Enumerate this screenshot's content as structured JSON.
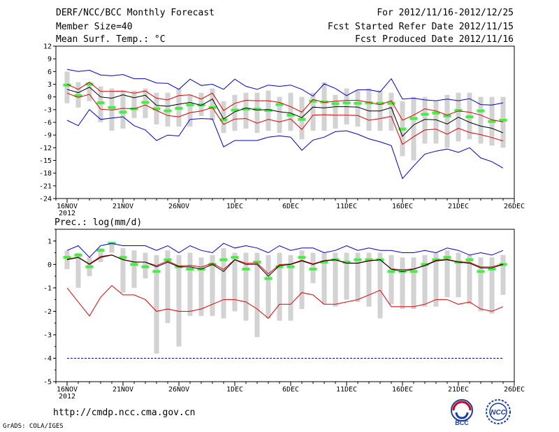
{
  "header": {
    "left": [
      "DERF/NCC/BCC Monthly Forecast",
      "Member Size=40",
      "Mean Surf. Temp.: °C"
    ],
    "right": [
      "For 2012/11/16-2012/12/25",
      "Fcst Started Refer Date 2012/11/15",
      "Fcst Produced Date 2012/11/16"
    ]
  },
  "footer": {
    "url": "http://cmdp.ncc.cma.gov.cn",
    "credit": "GrADS: COLA/IGES",
    "logo_left_text": "BCC",
    "logo_right_text": "NCC"
  },
  "colors": {
    "box": "#d3d3d3",
    "median": "#44ee44",
    "mean": "#000000",
    "std": "#dd0000",
    "extreme": "#0000cc",
    "axis": "#000000"
  },
  "chart_data": [
    {
      "type": "line",
      "title": "Mean Surf. Temp.: °C",
      "xlabel": "",
      "ylabel": "",
      "ylim": [
        -24,
        12
      ],
      "yticks": [
        12,
        9,
        6,
        3,
        0,
        -3,
        -6,
        -9,
        -12,
        -15,
        -18,
        -21,
        -24
      ],
      "xticks": [
        {
          "day": 0,
          "label": "16NOV",
          "sub": "2012"
        },
        {
          "day": 5,
          "label": "21NOV"
        },
        {
          "day": 10,
          "label": "26NOV"
        },
        {
          "day": 15,
          "label": "1DEC"
        },
        {
          "day": 20,
          "label": "6DEC"
        },
        {
          "day": 25,
          "label": "11DEC"
        },
        {
          "day": 30,
          "label": "16DEC"
        },
        {
          "day": 35,
          "label": "21DEC"
        },
        {
          "day": 40,
          "label": "26DEC"
        }
      ],
      "x": [
        0,
        1,
        2,
        3,
        4,
        5,
        6,
        7,
        8,
        9,
        10,
        11,
        12,
        13,
        14,
        15,
        16,
        17,
        18,
        19,
        20,
        21,
        22,
        23,
        24,
        25,
        26,
        27,
        28,
        29,
        30,
        31,
        32,
        33,
        34,
        35,
        36,
        37,
        38,
        39
      ],
      "series": [
        {
          "name": "max",
          "values": [
            6.5,
            6,
            6.3,
            5.2,
            5,
            5.3,
            4.3,
            4.3,
            3.3,
            3.2,
            1.8,
            4.2,
            2.7,
            3,
            1.8,
            4.2,
            2.5,
            1.8,
            2.8,
            2.5,
            2.8,
            1.8,
            0.2,
            3.1,
            2,
            0.3,
            1.7,
            1.7,
            1.2,
            4.3,
            -0.5,
            -0.3,
            -0.7,
            -0.9,
            -0.5,
            -0.9,
            -0.4,
            -1.8,
            -1.9,
            -1.4
          ]
        },
        {
          "name": "mean+std",
          "values": [
            3,
            1.8,
            3.5,
            1.3,
            1.3,
            1.4,
            0.9,
            1.4,
            -0.3,
            -0.7,
            0.3,
            0.5,
            -0.5,
            0.9,
            -3.2,
            -1.5,
            -0.8,
            -0.9,
            -0.9,
            -1.3,
            -2.3,
            -3.6,
            -0.6,
            -1.3,
            -1,
            -0.8,
            -0.8,
            -1.3,
            -1.8,
            -0.9,
            -5.5,
            -4.3,
            -2.8,
            -3.3,
            -4.3,
            -3.3,
            -3.6,
            -4.3,
            -5.4,
            -5.9
          ]
        },
        {
          "name": "mean",
          "values": [
            1.8,
            1,
            2.3,
            0,
            -0.3,
            0.5,
            -0.2,
            0.4,
            -2,
            -2.2,
            -1.7,
            -1.3,
            -2,
            -0.5,
            -5.2,
            -3.5,
            -2.6,
            -3.1,
            -3,
            -3.5,
            -3.8,
            -4.9,
            -2.4,
            -2.6,
            -2.3,
            -2.3,
            -2.4,
            -3.3,
            -3.3,
            -2.5,
            -9.3,
            -6.6,
            -5.3,
            -5.4,
            -6.4,
            -4.8,
            -6,
            -6.9,
            -7.4,
            -8.5
          ]
        },
        {
          "name": "mean-std",
          "values": [
            0.9,
            -0.1,
            0.6,
            -2.9,
            -3.1,
            -2.7,
            -2.8,
            -1.9,
            -3.2,
            -4.4,
            -4.7,
            -3.7,
            -3.3,
            -2.5,
            -6.5,
            -5.2,
            -5.1,
            -6.2,
            -5.3,
            -5.9,
            -5.2,
            -7.7,
            -4.3,
            -4.2,
            -4.3,
            -4.3,
            -4.4,
            -5.5,
            -5.1,
            -4.6,
            -11.2,
            -9.4,
            -7.8,
            -7.6,
            -8.8,
            -7.4,
            -8.4,
            -8.9,
            -9.6,
            -10.4
          ]
        },
        {
          "name": "min",
          "values": [
            -5.5,
            -6.8,
            -3,
            -5.3,
            -5,
            -4.7,
            -6.8,
            -7.8,
            -10.3,
            -9,
            -9.2,
            -5.3,
            -5.1,
            -5.2,
            -11.8,
            -10.3,
            -10.3,
            -10.3,
            -9.5,
            -9.2,
            -9.5,
            -12.6,
            -10.2,
            -9.5,
            -8.2,
            -8,
            -8.8,
            -9.9,
            -10.6,
            -11.5,
            -19.3,
            -16.3,
            -13.5,
            -12.8,
            -12.3,
            -13.1,
            -12,
            -14.4,
            -15.3,
            -16.8
          ]
        },
        {
          "name": "median",
          "values": [
            2.8,
            0.3,
            3,
            -1.4,
            -2.5,
            -3.6,
            -2.8,
            -1.3,
            -2.8,
            -3.3,
            -2.7,
            -1.9,
            -1.9,
            -2.5,
            -5.4,
            -3.1,
            -2.9,
            -2.9,
            -3.2,
            -1.8,
            -4.3,
            -5.3,
            -1,
            -1.2,
            -1.6,
            -1.4,
            -1.5,
            -1.4,
            -1.5,
            -1.5,
            -7.6,
            -5.1,
            -4.1,
            -3.8,
            -4.5,
            -3.2,
            -4.7,
            -3.3,
            -5.8,
            -5.5
          ]
        },
        {
          "name": "q75",
          "values": [
            6,
            3.5,
            3.5,
            2.5,
            2,
            1.5,
            1.5,
            2,
            1,
            1,
            2,
            0.5,
            1,
            2,
            -1,
            0.5,
            1,
            1,
            1.5,
            0,
            1,
            0,
            1,
            3.5,
            0.5,
            2,
            1.5,
            2,
            1.5,
            1,
            -1,
            0,
            0,
            -1,
            0.5,
            1,
            1,
            0,
            0,
            0
          ]
        },
        {
          "name": "q25",
          "values": [
            -1.5,
            -2.5,
            -1,
            -6,
            -8,
            -7.5,
            -5,
            -5,
            -6.5,
            -7,
            -7,
            -7,
            -4.5,
            -5.5,
            -8.5,
            -8,
            -7.5,
            -8.5,
            -8,
            -8.5,
            -8,
            -10,
            -8,
            -8,
            -7.5,
            -6.5,
            -7,
            -8,
            -8,
            -8,
            -14,
            -15,
            -11,
            -11,
            -12,
            -10.5,
            -10,
            -11,
            -11.5,
            -12
          ]
        }
      ]
    },
    {
      "type": "line",
      "title": "Prec.: log(mm/d)",
      "xlabel": "",
      "ylabel": "",
      "ylim": [
        -5,
        1.5
      ],
      "yticks": [
        1,
        0,
        -1,
        -2,
        -3,
        -4,
        -5
      ],
      "xticks": [
        {
          "day": 0,
          "label": "16NOV",
          "sub": "2012"
        },
        {
          "day": 5,
          "label": "21NOV"
        },
        {
          "day": 10,
          "label": "26NOV"
        },
        {
          "day": 15,
          "label": "1DEC"
        },
        {
          "day": 20,
          "label": "6DEC"
        },
        {
          "day": 25,
          "label": "11DEC"
        },
        {
          "day": 30,
          "label": "16DEC"
        },
        {
          "day": 35,
          "label": "21DEC"
        },
        {
          "day": 40,
          "label": "26DEC"
        }
      ],
      "x": [
        0,
        1,
        2,
        3,
        4,
        5,
        6,
        7,
        8,
        9,
        10,
        11,
        12,
        13,
        14,
        15,
        16,
        17,
        18,
        19,
        20,
        21,
        22,
        23,
        24,
        25,
        26,
        27,
        28,
        29,
        30,
        31,
        32,
        33,
        34,
        35,
        36,
        37,
        38,
        39
      ],
      "series": [
        {
          "name": "max",
          "values": [
            0.6,
            0.8,
            0.3,
            0.8,
            0.9,
            0.8,
            0.8,
            0.8,
            0.6,
            0.8,
            0.5,
            0.8,
            0.6,
            0.5,
            0.9,
            0.7,
            0.8,
            0.7,
            0.5,
            0.8,
            0.6,
            0.7,
            0.7,
            0.5,
            0.6,
            0.8,
            0.6,
            0.7,
            0.6,
            0.6,
            0.5,
            0.5,
            0.6,
            0.5,
            0.7,
            0.6,
            0.4,
            0.5,
            0.4,
            0.6
          ]
        },
        {
          "name": "mean+std",
          "values": [
            0.22,
            0.31,
            0.02,
            0.34,
            0.41,
            0.21,
            0.11,
            0.1,
            -0.05,
            0.15,
            -0.07,
            -0.04,
            -0.11,
            0.05,
            -0.21,
            0.21,
            0.05,
            0.06,
            -0.4,
            -0.01,
            0.02,
            0.18,
            0.02,
            0.17,
            0.21,
            0.06,
            0.06,
            0.16,
            0.21,
            -0.19,
            -0.22,
            -0.19,
            -0.04,
            0.18,
            0.22,
            0.11,
            0.09,
            -0.11,
            -0.1,
            0.02
          ]
        },
        {
          "name": "mean",
          "values": [
            0.2,
            0.3,
            0,
            0.3,
            0.4,
            0.2,
            0.1,
            0.1,
            -0.1,
            0.1,
            -0.1,
            -0.1,
            -0.2,
            0,
            -0.3,
            0.2,
            0,
            0,
            -0.5,
            -0.05,
            0,
            0.15,
            0,
            0.15,
            0.2,
            0.05,
            0.05,
            0.15,
            0.2,
            -0.2,
            -0.3,
            -0.2,
            -0.05,
            0.15,
            0.2,
            0.1,
            0.05,
            -0.15,
            -0.15,
            0
          ]
        },
        {
          "name": "mean-std",
          "values": [
            -1,
            -1.6,
            -2.2,
            -1.4,
            -0.9,
            -1.3,
            -1.3,
            -1.5,
            -2,
            -1.9,
            -2,
            -2,
            -1.9,
            -1.7,
            -1.5,
            -1.5,
            -1.6,
            -1.9,
            -2.3,
            -1.7,
            -1.7,
            -1.2,
            -1.3,
            -1.7,
            -1.7,
            -1.6,
            -1.5,
            -1.3,
            -1.1,
            -1.8,
            -1.8,
            -1.8,
            -1.7,
            -1.5,
            -1.5,
            -1.7,
            -1.6,
            -1.9,
            -2,
            -1.8
          ]
        },
        {
          "name": "min",
          "values": [
            -4,
            -4,
            -4,
            -4,
            -4,
            -4,
            -4,
            -4,
            -4,
            -4,
            -4,
            -4,
            -4,
            -4,
            -4,
            -4,
            -4,
            -4,
            -4,
            -4,
            -4,
            -4,
            -4,
            -4,
            -4,
            -4,
            -4,
            -4,
            -4,
            -4,
            -4,
            -4,
            -4,
            -4,
            -4,
            -4,
            -4,
            -4,
            -4,
            -4
          ]
        },
        {
          "name": "median",
          "values": [
            0.3,
            0.4,
            -0.1,
            0.6,
            0.9,
            0.3,
            0,
            -0.1,
            -0.3,
            0.2,
            -0.1,
            -0.2,
            -0.2,
            0,
            0.2,
            0.3,
            -0.2,
            0.1,
            -0.6,
            -0.1,
            -0.1,
            0.3,
            -0.2,
            0.1,
            0.2,
            0.1,
            0.2,
            0.2,
            0.2,
            -0.3,
            -0.3,
            -0.3,
            0,
            0.2,
            0.3,
            0.1,
            0.2,
            -0.3,
            -0.2,
            0
          ]
        },
        {
          "name": "q75",
          "values": [
            0.6,
            0.5,
            0.3,
            0.7,
            0.9,
            0.7,
            0.6,
            0.5,
            0.4,
            0.6,
            0.4,
            0.5,
            0.3,
            0.4,
            0.7,
            0.5,
            0.5,
            0.5,
            0.4,
            0.5,
            0.4,
            0.6,
            0.5,
            0.5,
            0.5,
            0.5,
            0.5,
            0.5,
            0.5,
            0.4,
            0.3,
            0.3,
            0.4,
            0.5,
            0.6,
            0.5,
            0.4,
            0.3,
            0.3,
            0.4
          ]
        },
        {
          "name": "q25",
          "values": [
            -0.2,
            -1,
            -0.5,
            0.1,
            0.5,
            -1.2,
            -1,
            -0.6,
            -3.8,
            -2.5,
            -3.5,
            -2.2,
            -2.2,
            -2.2,
            -2.3,
            -2,
            -2.4,
            -3.1,
            -2.3,
            -2.4,
            -2.4,
            -1.9,
            -0.8,
            -1.7,
            -1.8,
            -1.5,
            -1.6,
            -1.8,
            -2.3,
            -1.7,
            -1.9,
            -1.9,
            -1.8,
            -1.8,
            -1.4,
            -1.4,
            -1.7,
            -2,
            -2.1,
            -1.3
          ]
        }
      ]
    }
  ]
}
